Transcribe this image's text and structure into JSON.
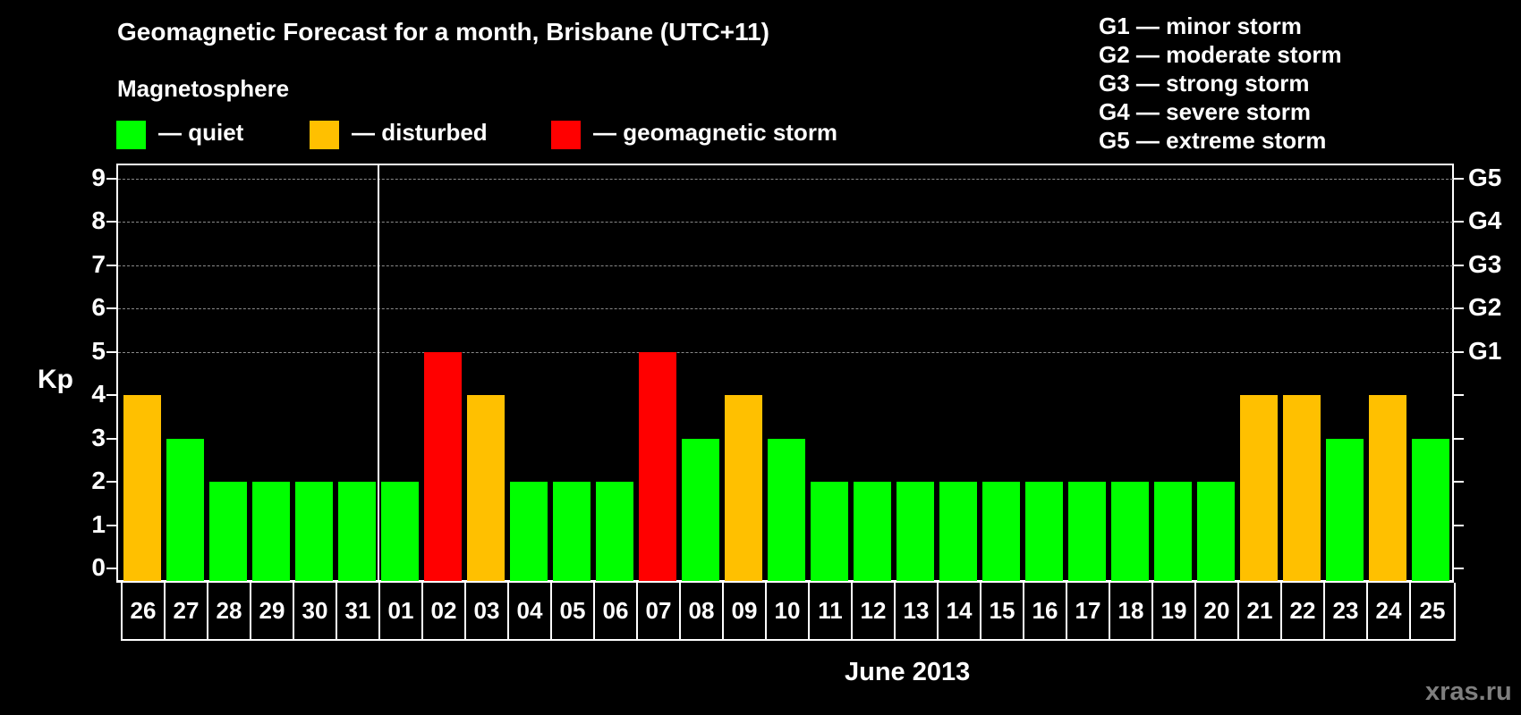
{
  "title": "Geomagnetic Forecast for a month, Brisbane (UTC+11)",
  "legend": {
    "heading": "Magnetosphere",
    "items": [
      {
        "label": "— quiet",
        "color": "#00ff00"
      },
      {
        "label": "— disturbed",
        "color": "#ffc000"
      },
      {
        "label": "— geomagnetic storm",
        "color": "#ff0000"
      }
    ]
  },
  "g_scale": [
    "G1 — minor storm",
    "G2 — moderate storm",
    "G3 — strong storm",
    "G4 — severe storm",
    "G5 — extreme storm"
  ],
  "month_label": "June 2013",
  "watermark": "xras.ru",
  "chart_data": {
    "type": "bar",
    "title": "Geomagnetic Forecast for a month, Brisbane (UTC+11)",
    "xlabel": "June 2013",
    "ylabel": "Kp",
    "ylim": [
      0,
      9
    ],
    "yticks": [
      0,
      1,
      2,
      3,
      4,
      5,
      6,
      7,
      8,
      9
    ],
    "right_axis_labels": {
      "5": "G1",
      "6": "G2",
      "7": "G3",
      "8": "G4",
      "9": "G5"
    },
    "grid": "dashed horizontal at 5-9",
    "categories": [
      "26",
      "27",
      "28",
      "29",
      "30",
      "31",
      "01",
      "02",
      "03",
      "04",
      "05",
      "06",
      "07",
      "08",
      "09",
      "10",
      "11",
      "12",
      "13",
      "14",
      "15",
      "16",
      "17",
      "18",
      "19",
      "20",
      "21",
      "22",
      "23",
      "24",
      "25"
    ],
    "values": [
      4,
      3,
      2,
      2,
      2,
      2,
      2,
      5,
      4,
      2,
      2,
      2,
      5,
      3,
      4,
      3,
      2,
      2,
      2,
      2,
      2,
      2,
      2,
      2,
      2,
      2,
      4,
      4,
      3,
      4,
      3
    ],
    "status": [
      "disturbed",
      "quiet",
      "quiet",
      "quiet",
      "quiet",
      "quiet",
      "quiet",
      "storm",
      "disturbed",
      "quiet",
      "quiet",
      "quiet",
      "storm",
      "quiet",
      "disturbed",
      "quiet",
      "quiet",
      "quiet",
      "quiet",
      "quiet",
      "quiet",
      "quiet",
      "quiet",
      "quiet",
      "quiet",
      "quiet",
      "disturbed",
      "disturbed",
      "quiet",
      "disturbed",
      "quiet"
    ],
    "colors": {
      "quiet": "#00ff00",
      "disturbed": "#ffc000",
      "storm": "#ff0000"
    },
    "month_divider_after": "31"
  }
}
